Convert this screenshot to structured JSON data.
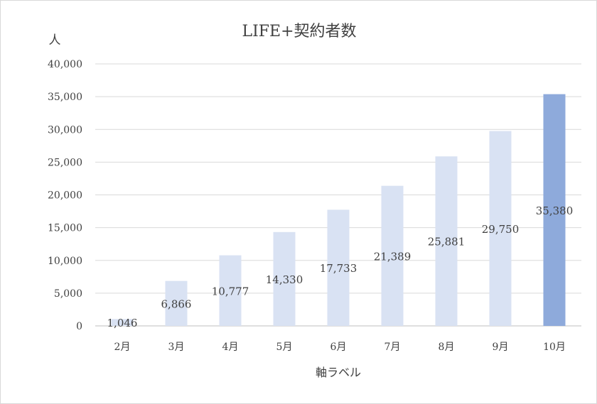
{
  "chart_data": {
    "type": "bar",
    "title": "LIFE+契約者数",
    "ylabel": "人",
    "xlabel": "軸ラベル",
    "categories": [
      "2月",
      "3月",
      "4月",
      "5月",
      "6月",
      "7月",
      "8月",
      "9月",
      "10月"
    ],
    "values": [
      1046,
      6866,
      10777,
      14330,
      17733,
      21389,
      25881,
      29750,
      35380
    ],
    "data_labels": [
      "1,046",
      "6,866",
      "10,777",
      "14,330",
      "17,733",
      "21,389",
      "25,881",
      "29,750",
      "35,380"
    ],
    "ylim": [
      0,
      40000
    ],
    "yticks": [
      0,
      5000,
      10000,
      15000,
      20000,
      25000,
      30000,
      35000,
      40000
    ],
    "ytick_labels": [
      "0",
      "5,000",
      "10,000",
      "15,000",
      "20,000",
      "25,000",
      "30,000",
      "35,000",
      "40,000"
    ],
    "grid": true,
    "legend": "none",
    "colors": {
      "bar": "#d9e2f3",
      "highlight_bar": "#8eaadb"
    },
    "highlight_index": 8
  }
}
